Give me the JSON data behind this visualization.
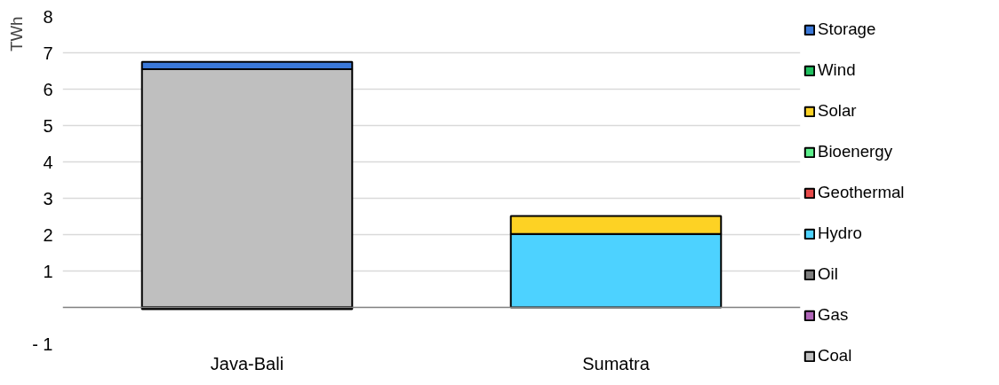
{
  "chart_data": {
    "type": "bar",
    "stacked": true,
    "ylabel": "TWh",
    "categories": [
      "Java-Bali",
      "Sumatra"
    ],
    "series": [
      {
        "name": "Coal",
        "color": "#bfbfbf",
        "values": [
          6.55,
          0
        ]
      },
      {
        "name": "Gas",
        "color": "#b065b8",
        "values": [
          0,
          0
        ]
      },
      {
        "name": "Oil",
        "color": "#7f7f7f",
        "values": [
          -0.05,
          0
        ]
      },
      {
        "name": "Hydro",
        "color": "#4dd2ff",
        "values": [
          0,
          2.02
        ]
      },
      {
        "name": "Geothermal",
        "color": "#e84a4a",
        "values": [
          0,
          0
        ]
      },
      {
        "name": "Bioenergy",
        "color": "#5cf08c",
        "values": [
          0,
          0
        ]
      },
      {
        "name": "Solar",
        "color": "#fdd224",
        "values": [
          0,
          0.49
        ]
      },
      {
        "name": "Wind",
        "color": "#1fbf5f",
        "values": [
          0,
          0
        ]
      },
      {
        "name": "Storage",
        "color": "#3a78d8",
        "values": [
          0.2,
          0
        ]
      }
    ],
    "ylim": [
      -1,
      8
    ],
    "yticks": [
      {
        "value": -1,
        "label": "- 1"
      },
      {
        "value": 0,
        "label": null
      },
      1,
      2,
      3,
      4,
      5,
      6,
      7,
      8
    ],
    "grid": "y",
    "legend": "right"
  }
}
